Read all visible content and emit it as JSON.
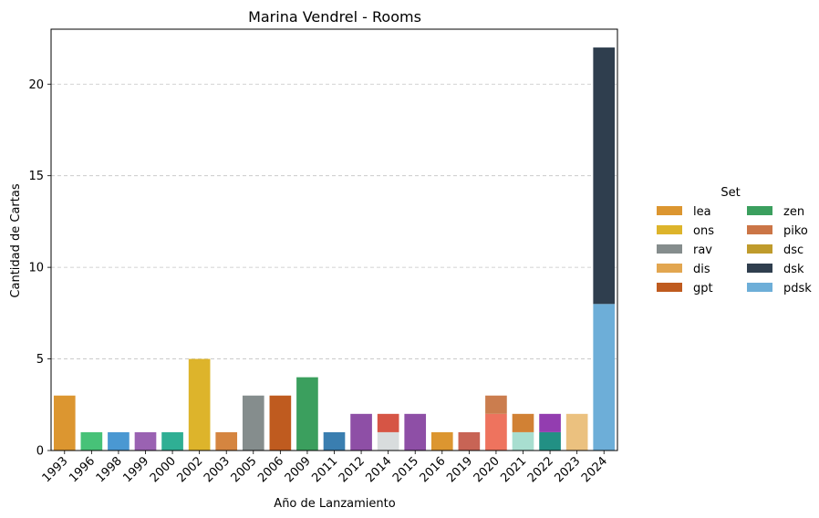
{
  "chart_data": {
    "type": "bar",
    "stacked": true,
    "title": "Marina Vendrel - Rooms",
    "xlabel": "Año de Lanzamiento",
    "ylabel": "Cantidad de Cartas",
    "ylim": [
      0,
      23
    ],
    "yticks": [
      0,
      5,
      10,
      15,
      20
    ],
    "grid": "y-dashed",
    "categories": [
      "1993",
      "1996",
      "1998",
      "1999",
      "2000",
      "2002",
      "2003",
      "2005",
      "2006",
      "2009",
      "2011",
      "2012",
      "2014",
      "2015",
      "2016",
      "2019",
      "2020",
      "2021",
      "2022",
      "2023",
      "2024"
    ],
    "segments": [
      {
        "category": "1993",
        "value": 3,
        "color": "#DC9630"
      },
      {
        "category": "1996",
        "value": 1,
        "color": "#47C278"
      },
      {
        "category": "1998",
        "value": 1,
        "color": "#4A98D2"
      },
      {
        "category": "1999",
        "value": 1,
        "color": "#9A62B2"
      },
      {
        "category": "2000",
        "value": 1,
        "color": "#2FAF94"
      },
      {
        "category": "2002",
        "value": 5,
        "color": "#DDB42B"
      },
      {
        "category": "2003",
        "value": 1,
        "color": "#D58540"
      },
      {
        "category": "2005",
        "value": 3,
        "color": "#858D8D"
      },
      {
        "category": "2006",
        "value": 3,
        "color": "#BF5B1F"
      },
      {
        "category": "2009",
        "value": 4,
        "color": "#3B9F5E"
      },
      {
        "category": "2011",
        "value": 1,
        "color": "#3A7EB0"
      },
      {
        "category": "2012",
        "value": 2,
        "color": "#8E4FA6"
      },
      {
        "category": "2014",
        "value": 1,
        "color": "#D8DCDD"
      },
      {
        "category": "2014",
        "value": 1,
        "color": "#D65545"
      },
      {
        "category": "2015",
        "value": 2,
        "color": "#8E4FA6"
      },
      {
        "category": "2016",
        "value": 1,
        "color": "#DC9630"
      },
      {
        "category": "2019",
        "value": 1,
        "color": "#C86455"
      },
      {
        "category": "2020",
        "value": 2,
        "color": "#EE735E"
      },
      {
        "category": "2020",
        "value": 1,
        "color": "#CB7D4E"
      },
      {
        "category": "2021",
        "value": 1,
        "color": "#A8DED0"
      },
      {
        "category": "2021",
        "value": 1,
        "color": "#D18134"
      },
      {
        "category": "2022",
        "value": 1,
        "color": "#229084"
      },
      {
        "category": "2022",
        "value": 1,
        "color": "#933DB0"
      },
      {
        "category": "2023",
        "value": 2,
        "color": "#EBC17F"
      },
      {
        "category": "2024",
        "value": 8,
        "color": "#6DAED8"
      },
      {
        "category": "2024",
        "value": 14,
        "color": "#2F3E4E"
      }
    ],
    "legend": {
      "title": "Set",
      "placement": "right",
      "entries": [
        {
          "label": "lea",
          "color": "#DC9630"
        },
        {
          "label": "ons",
          "color": "#DDB42B"
        },
        {
          "label": "rav",
          "color": "#858D8D"
        },
        {
          "label": "dis",
          "color": "#E2A650"
        },
        {
          "label": "gpt",
          "color": "#BF5B1F"
        },
        {
          "label": "zen",
          "color": "#3B9F5E"
        },
        {
          "label": "piko",
          "color": "#CB7546"
        },
        {
          "label": "dsc",
          "color": "#BF9B2C"
        },
        {
          "label": "dsk",
          "color": "#2F3E4E"
        },
        {
          "label": "pdsk",
          "color": "#6DAED8"
        }
      ]
    }
  }
}
